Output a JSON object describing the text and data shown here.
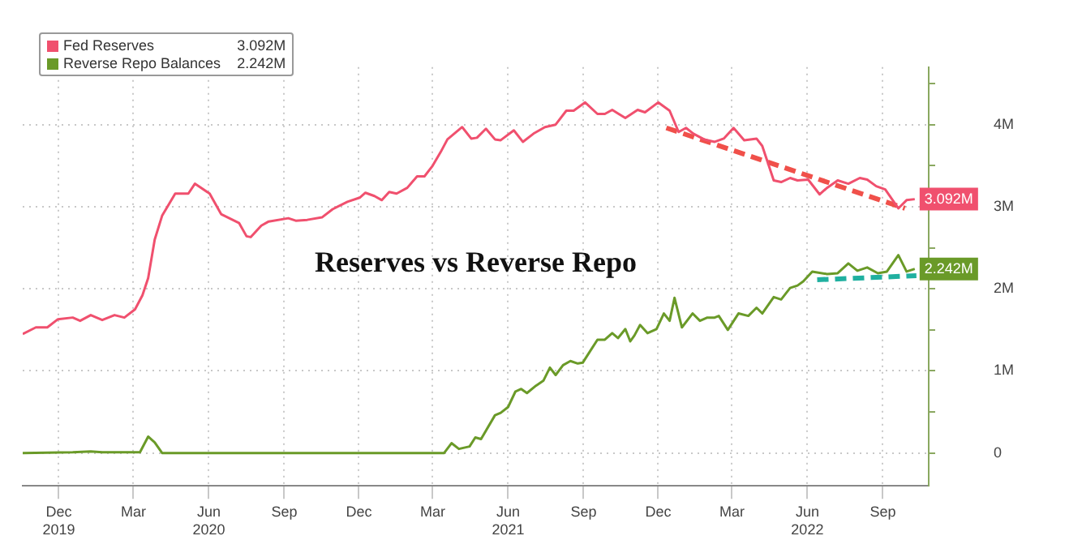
{
  "chart_data": {
    "type": "line",
    "title": "Reserves vs Reverse Repo",
    "xlim": [
      "2019-11-01",
      "2022-11-10"
    ],
    "xticks": [
      {
        "value": "2019-12-15",
        "label": "Dec\n2019"
      },
      {
        "value": "2020-03-15",
        "label": "Mar"
      },
      {
        "value": "2020-06-15",
        "label": "Jun\n2020"
      },
      {
        "value": "2020-09-15",
        "label": "Sep"
      },
      {
        "value": "2020-12-15",
        "label": "Dec"
      },
      {
        "value": "2021-03-15",
        "label": "Mar"
      },
      {
        "value": "2021-06-15",
        "label": "Jun\n2021"
      },
      {
        "value": "2021-09-15",
        "label": "Sep"
      },
      {
        "value": "2021-12-15",
        "label": "Dec"
      },
      {
        "value": "2022-03-15",
        "label": "Mar"
      },
      {
        "value": "2022-06-15",
        "label": "Jun\n2022"
      },
      {
        "value": "2022-09-15",
        "label": "Sep"
      }
    ],
    "ylim": [
      -0.4,
      4.7
    ],
    "yticks": [
      {
        "value": 0,
        "label": "0"
      },
      {
        "value": 0.5,
        "label": null
      },
      {
        "value": 1,
        "label": "1M"
      },
      {
        "value": 1.5,
        "label": null
      },
      {
        "value": 2,
        "label": "2M"
      },
      {
        "value": 2.5,
        "label": null
      },
      {
        "value": 3,
        "label": "3M"
      },
      {
        "value": 3.5,
        "label": null
      },
      {
        "value": 4,
        "label": "4M"
      },
      {
        "value": 4.5,
        "label": null
      }
    ],
    "grid": true,
    "legend": "top left",
    "marker": "none",
    "series": [
      {
        "name": "Fed Reserves",
        "color": "#f0506e",
        "x": [
          "2019-11-01",
          "2019-11-17",
          "2019-12-01",
          "2019-12-14",
          "2020-01-01",
          "2020-01-10",
          "2020-01-23",
          "2020-02-06",
          "2020-02-21",
          "2020-03-04",
          "2020-03-17",
          "2020-03-26",
          "2020-04-02",
          "2020-04-10",
          "2020-04-19",
          "2020-05-05",
          "2020-05-21",
          "2020-05-29",
          "2020-06-16",
          "2020-06-30",
          "2020-07-22",
          "2020-07-31",
          "2020-08-05",
          "2020-08-18",
          "2020-08-27",
          "2020-09-20",
          "2020-09-29",
          "2020-10-13",
          "2020-10-31",
          "2020-11-13",
          "2020-12-01",
          "2020-12-16",
          "2020-12-23",
          "2021-01-03",
          "2021-01-12",
          "2021-01-21",
          "2021-01-30",
          "2021-02-12",
          "2021-02-24",
          "2021-03-05",
          "2021-03-15",
          "2021-03-25",
          "2021-04-02",
          "2021-04-20",
          "2021-05-01",
          "2021-05-08",
          "2021-05-19",
          "2021-05-30",
          "2021-06-06",
          "2021-06-22",
          "2021-07-03",
          "2021-07-16",
          "2021-07-30",
          "2021-08-12",
          "2021-08-25",
          "2021-09-03",
          "2021-09-17",
          "2021-10-02",
          "2021-10-11",
          "2021-10-20",
          "2021-11-05",
          "2021-11-20",
          "2021-11-29",
          "2021-12-15",
          "2021-12-29",
          "2022-01-09",
          "2022-01-18",
          "2022-01-27",
          "2022-02-09",
          "2022-02-22",
          "2022-03-05",
          "2022-03-17",
          "2022-03-30",
          "2022-04-14",
          "2022-04-21",
          "2022-05-05",
          "2022-05-14",
          "2022-05-25",
          "2022-06-03",
          "2022-06-16",
          "2022-06-30",
          "2022-07-09",
          "2022-07-22",
          "2022-08-04",
          "2022-08-18",
          "2022-08-27",
          "2022-09-07",
          "2022-09-18",
          "2022-10-04",
          "2022-10-14",
          "2022-10-24"
        ],
        "values": [
          1.45,
          1.53,
          1.53,
          1.63,
          1.65,
          1.61,
          1.68,
          1.62,
          1.68,
          1.65,
          1.75,
          1.92,
          2.13,
          2.6,
          2.89,
          3.16,
          3.16,
          3.28,
          3.16,
          2.91,
          2.8,
          2.64,
          2.63,
          2.77,
          2.82,
          2.86,
          2.83,
          2.84,
          2.87,
          2.97,
          3.06,
          3.11,
          3.17,
          3.13,
          3.08,
          3.18,
          3.16,
          3.23,
          3.37,
          3.37,
          3.5,
          3.67,
          3.82,
          3.97,
          3.83,
          3.84,
          3.95,
          3.82,
          3.81,
          3.93,
          3.79,
          3.89,
          3.97,
          4.0,
          4.17,
          4.17,
          4.27,
          4.13,
          4.13,
          4.18,
          4.08,
          4.18,
          4.15,
          4.27,
          4.17,
          3.91,
          3.96,
          3.89,
          3.82,
          3.79,
          3.83,
          3.96,
          3.81,
          3.83,
          3.74,
          3.32,
          3.3,
          3.35,
          3.32,
          3.33,
          3.15,
          3.23,
          3.32,
          3.28,
          3.35,
          3.33,
          3.25,
          3.21,
          2.98,
          3.08,
          3.092
        ],
        "value_labels": [
          null,
          null,
          null,
          null,
          null,
          null,
          null,
          null,
          null,
          null,
          null,
          null,
          null,
          null,
          null,
          null,
          null,
          null,
          null,
          null,
          null,
          null,
          null,
          null,
          null,
          null,
          null,
          null,
          null,
          null,
          null,
          null,
          null,
          null,
          null,
          null,
          null,
          null,
          null,
          null,
          null,
          null,
          null,
          null,
          null,
          null,
          null,
          null,
          null,
          null,
          null,
          null,
          null,
          null,
          null,
          null,
          null,
          null,
          null,
          null,
          null,
          null,
          null,
          null,
          null,
          null,
          null,
          null,
          null,
          null,
          null,
          null,
          null,
          null,
          null,
          null,
          null,
          null,
          null,
          null,
          null,
          null,
          null,
          null,
          null,
          null,
          null,
          null,
          null,
          null,
          "3.092M"
        ]
      },
      {
        "name": "Reverse Repo Balances",
        "color": "#6a9a28",
        "x": [
          "2019-11-01",
          "2020-01-01",
          "2020-01-23",
          "2020-02-06",
          "2020-03-17",
          "2020-03-23",
          "2020-04-02",
          "2020-04-10",
          "2020-04-19",
          "2021-03-29",
          "2021-04-07",
          "2021-04-16",
          "2021-04-29",
          "2021-05-06",
          "2021-05-13",
          "2021-05-30",
          "2021-06-06",
          "2021-06-15",
          "2021-06-24",
          "2021-07-01",
          "2021-07-08",
          "2021-07-19",
          "2021-07-28",
          "2021-08-05",
          "2021-08-12",
          "2021-08-21",
          "2021-08-30",
          "2021-09-08",
          "2021-09-14",
          "2021-09-23",
          "2021-10-02",
          "2021-10-11",
          "2021-10-20",
          "2021-10-27",
          "2021-11-05",
          "2021-11-11",
          "2021-11-16",
          "2021-11-23",
          "2021-12-02",
          "2021-12-13",
          "2021-12-22",
          "2021-12-29",
          "2022-01-04",
          "2022-01-13",
          "2022-01-26",
          "2022-02-04",
          "2022-02-13",
          "2022-02-22",
          "2022-02-27",
          "2022-03-10",
          "2022-03-23",
          "2022-04-04",
          "2022-04-14",
          "2022-04-21",
          "2022-05-05",
          "2022-05-14",
          "2022-05-25",
          "2022-06-03",
          "2022-06-10",
          "2022-06-21",
          "2022-07-09",
          "2022-07-22",
          "2022-08-04",
          "2022-08-15",
          "2022-08-27",
          "2022-09-09",
          "2022-09-20",
          "2022-10-04",
          "2022-10-14",
          "2022-10-24"
        ],
        "values": [
          0,
          0.01,
          0.02,
          0.01,
          0.01,
          0.01,
          0.2,
          0.13,
          0,
          0,
          0.12,
          0.05,
          0.08,
          0.19,
          0.17,
          0.46,
          0.49,
          0.56,
          0.75,
          0.78,
          0.73,
          0.82,
          0.88,
          1.04,
          0.95,
          1.07,
          1.12,
          1.09,
          1.1,
          1.24,
          1.38,
          1.38,
          1.46,
          1.4,
          1.51,
          1.36,
          1.43,
          1.56,
          1.46,
          1.51,
          1.7,
          1.61,
          1.89,
          1.53,
          1.7,
          1.61,
          1.65,
          1.65,
          1.67,
          1.5,
          1.7,
          1.67,
          1.77,
          1.7,
          1.9,
          1.87,
          2.01,
          2.04,
          2.09,
          2.21,
          2.18,
          2.19,
          2.31,
          2.22,
          2.26,
          2.19,
          2.21,
          2.41,
          2.21,
          2.242
        ],
        "value_labels": [
          null,
          null,
          null,
          null,
          null,
          null,
          null,
          null,
          null,
          null,
          null,
          null,
          null,
          null,
          null,
          null,
          null,
          null,
          null,
          null,
          null,
          null,
          null,
          null,
          null,
          null,
          null,
          null,
          null,
          null,
          null,
          null,
          null,
          null,
          null,
          null,
          null,
          null,
          null,
          null,
          null,
          null,
          null,
          null,
          null,
          null,
          null,
          null,
          null,
          null,
          null,
          null,
          null,
          null,
          null,
          null,
          null,
          null,
          null,
          null,
          null,
          null,
          null,
          null,
          null,
          null,
          null,
          null,
          null,
          "2.242M"
        ]
      },
      {
        "type": "line",
        "color": "#f0504a",
        "line_style": "dashed",
        "x": [
          "2021-12-25",
          "2022-10-12"
        ],
        "values": [
          3.96,
          2.98
        ]
      },
      {
        "type": "line",
        "color": "#20b0a0",
        "line_style": "dashed",
        "x": [
          "2022-06-27",
          "2022-10-26"
        ],
        "values": [
          2.11,
          2.16
        ]
      }
    ]
  }
}
